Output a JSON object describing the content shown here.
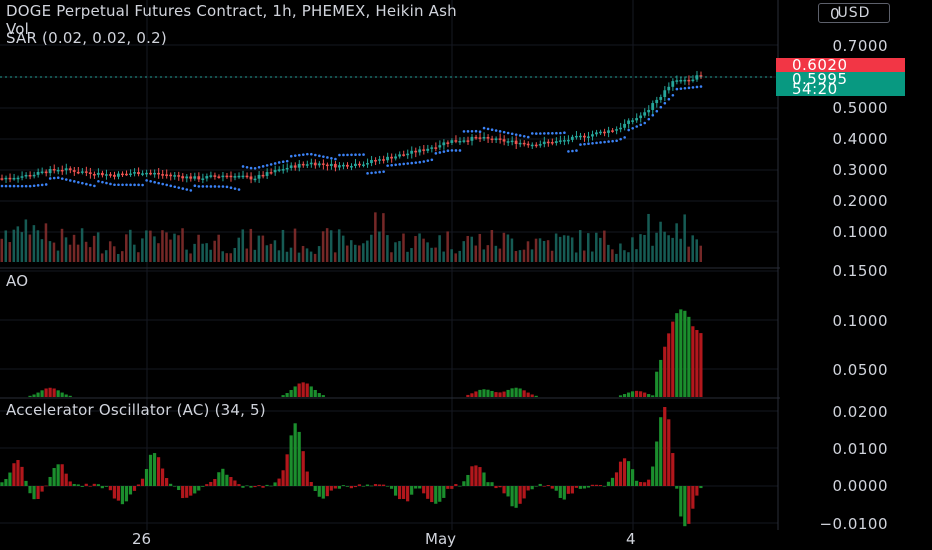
{
  "chart": {
    "title": "DOGE Perpetual Futures Contract, 1h, PHEMEX, Heikin Ash",
    "vol_label": "Vol",
    "sar_label": "SAR (0.02, 0.02, 0.2)",
    "ao_label": "AO",
    "ac_label": "Accelerator Oscillator (AC) (34, 5)",
    "currency_button": "USD",
    "price_label_red": "0.6020",
    "price_label_teal": "0.5995",
    "countdown": "54:20",
    "price_axis_top_partial": "0",
    "price_axis": [
      "0.7000",
      "0.6000",
      "0.5000",
      "0.4000",
      "0.3000",
      "0.2000",
      "0.1000"
    ],
    "ao_axis": [
      "0.1500",
      "0.1000",
      "0.0500"
    ],
    "ac_axis": [
      "0.0200",
      "0.0100",
      "0.0000",
      "−0.0100"
    ],
    "time_axis": [
      "26",
      "May",
      "4"
    ],
    "colors": {
      "background": "#000000",
      "up": "#26a69a",
      "down": "#ef5350",
      "ao_up": "#1b8e2d",
      "ao_down": "#b2171c",
      "sar": "#3b82f6",
      "price_red": "#f23645",
      "price_teal": "#089981"
    }
  },
  "chart_data": {
    "type": "candlestick",
    "symbol": "DOGE Perpetual Futures Contract",
    "interval": "1h",
    "exchange": "PHEMEX",
    "chart_style": "Heikin Ashi",
    "last_price": 0.5995,
    "alt_price": 0.602,
    "price_axis_range": [
      0.05,
      0.75
    ],
    "price_series_approx": {
      "x_labels": [
        "26",
        "May",
        "4"
      ],
      "close_path": [
        0.27,
        0.28,
        0.3,
        0.29,
        0.28,
        0.29,
        0.28,
        0.27,
        0.28,
        0.27,
        0.3,
        0.32,
        0.31,
        0.32,
        0.34,
        0.36,
        0.39,
        0.4,
        0.39,
        0.38,
        0.39,
        0.41,
        0.43,
        0.48,
        0.58,
        0.6
      ]
    },
    "ao_axis_range": [
      0.0,
      0.15
    ],
    "ao_peak": 0.103,
    "ac_axis_range": [
      -0.012,
      0.022
    ],
    "ac_peak": 0.021,
    "ac_trough": -0.011
  }
}
